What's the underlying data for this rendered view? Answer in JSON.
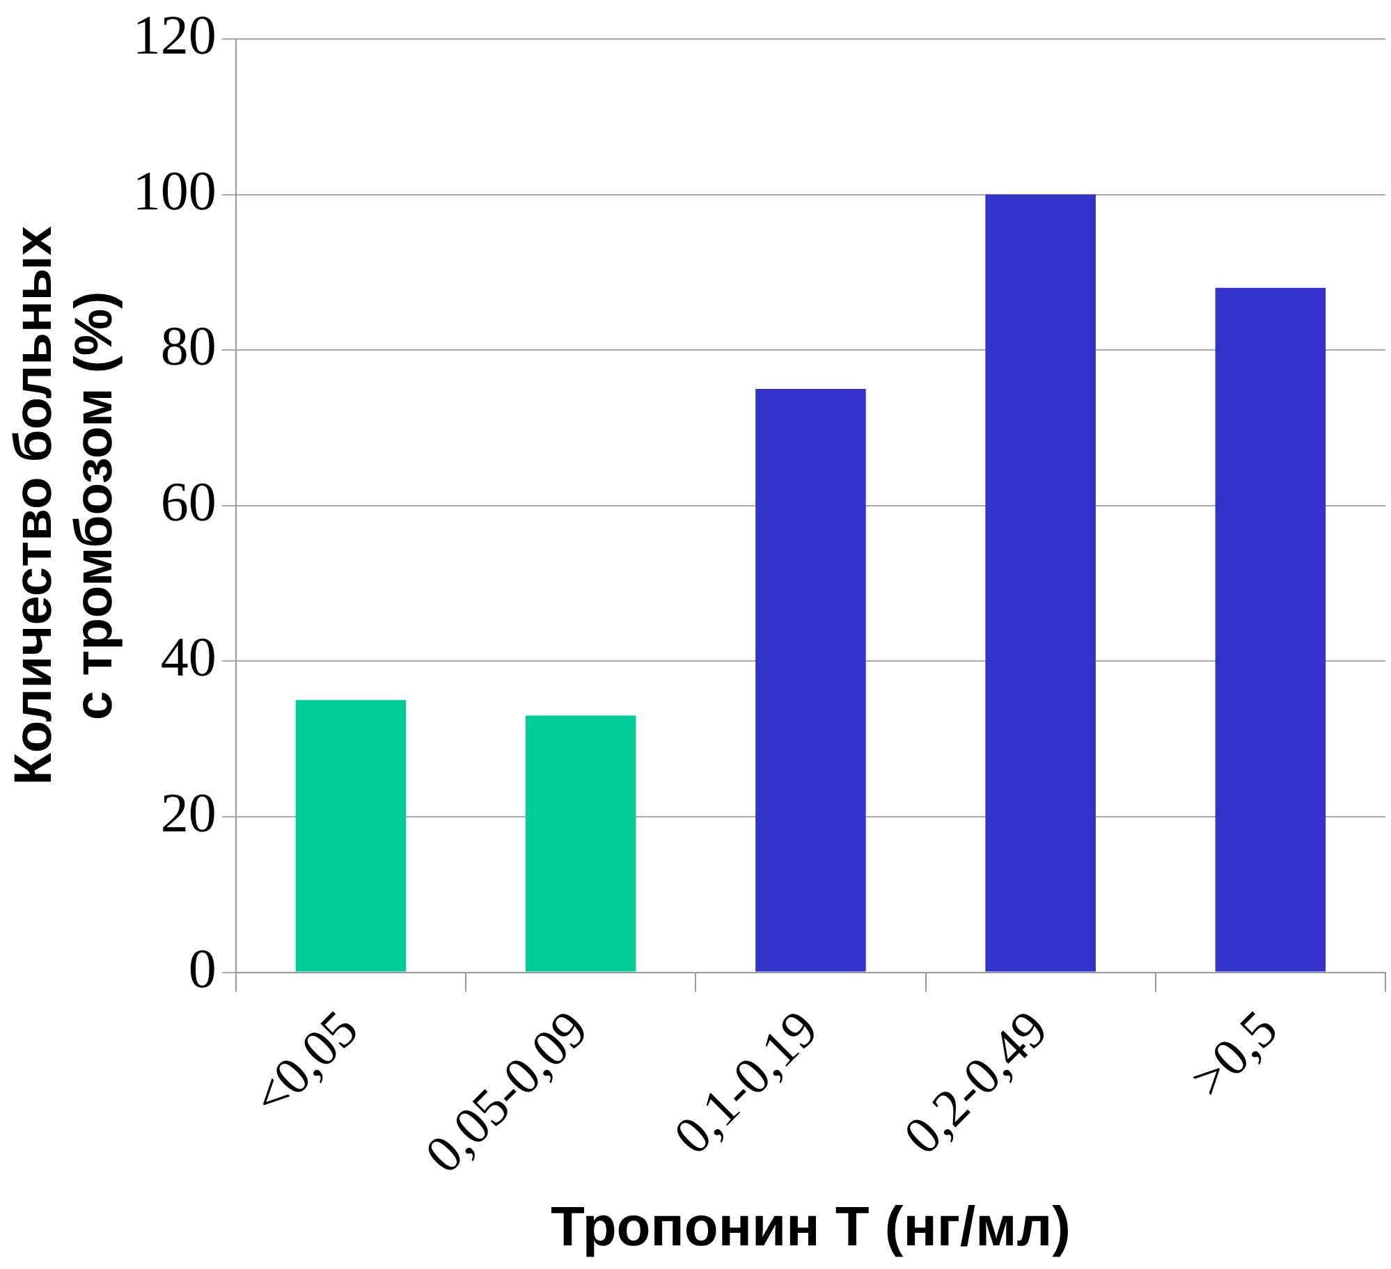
{
  "chart_data": {
    "type": "bar",
    "xlabel": "Тропонин Т (нг/мл)",
    "ylabel": "Количество больных\nс тромбозом (%)",
    "categories": [
      "<0,05",
      "0,05-0,09",
      "0,1-0,19",
      "0,2-0,49",
      ">0,5"
    ],
    "values": [
      35,
      33,
      75,
      100,
      88
    ],
    "colors": [
      "#00cc99",
      "#00cc99",
      "#3333cc",
      "#3333cc",
      "#3333cc"
    ],
    "ylim": [
      0,
      120
    ],
    "yticks": [
      0,
      20,
      40,
      60,
      80,
      100,
      120
    ],
    "grid": "y"
  }
}
